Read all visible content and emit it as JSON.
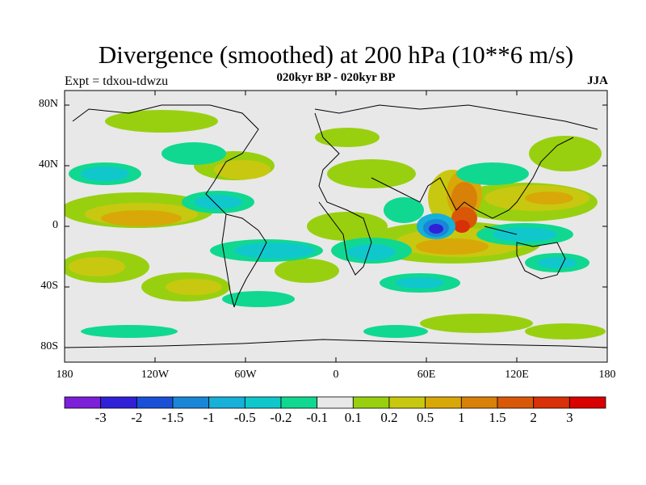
{
  "header": {
    "title": "Divergence (smoothed) at 200 hPa (10**6 m/s)",
    "subtitle": "020kyr BP - 020kyr BP",
    "experiment": "Expt = tdxou-tdwzu",
    "season": "JJA"
  },
  "map": {
    "projection": "cylindrical equidistant",
    "lon_range": [
      -180,
      180
    ],
    "lat_range": [
      -90,
      90
    ],
    "y_ticks": [
      "80N",
      "40N",
      "0",
      "40S",
      "80S"
    ],
    "x_ticks": [
      "180",
      "120W",
      "60W",
      "0",
      "60E",
      "120E",
      "180"
    ],
    "background_color": "#e8e8e8",
    "coastline_color": "#000000"
  },
  "colorbar": {
    "labels": [
      "-3",
      "-2",
      "-1.5",
      "-1",
      "-0.5",
      "-0.2",
      "-0.1",
      "0.1",
      "0.2",
      "0.5",
      "1",
      "1.5",
      "2",
      "3"
    ],
    "colors": [
      "#7b1fd8",
      "#3020d8",
      "#1a50d8",
      "#1a86d8",
      "#16b0d8",
      "#10c8cc",
      "#10d890",
      "#e8e8e8",
      "#98d010",
      "#c8c810",
      "#d8a808",
      "#d88008",
      "#d85808",
      "#d83008",
      "#d80000"
    ]
  }
}
